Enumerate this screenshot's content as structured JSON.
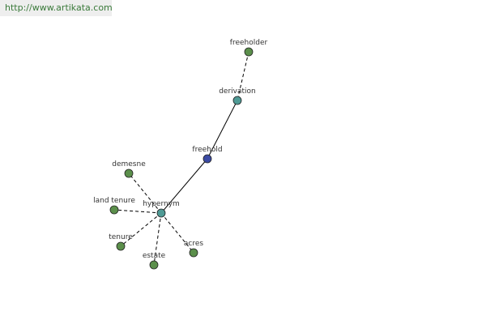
{
  "header": {
    "url": "http://www.artikata.com"
  },
  "nodes": [
    {
      "label": "freeholder"
    },
    {
      "label": "derivation"
    },
    {
      "label": "freehold"
    },
    {
      "label": "hypernym"
    },
    {
      "label": "demesne"
    },
    {
      "label": "land tenure"
    },
    {
      "label": "tenure"
    },
    {
      "label": "estate"
    },
    {
      "label": "acres"
    }
  ]
}
